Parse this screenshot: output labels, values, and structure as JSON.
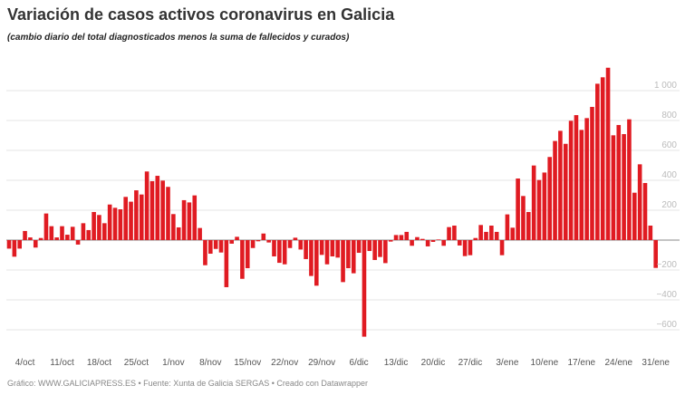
{
  "title": "Variación de casos activos coronavirus en Galicia",
  "subtitle": "(cambio diario del total diagnosticados menos la suma de fallecidos y curados)",
  "footer": "Gráfico: WWW.GALICIAPRESS.ES • Fuente: Xunta de Galicia SERGAS • Creado con Datawrapper",
  "colors": {
    "bar": "#e01b22",
    "grid": "#e6e6e6",
    "zero_line": "#888888"
  },
  "chart_data": {
    "type": "bar",
    "title": "Variación de casos activos coronavirus en Galicia",
    "xlabel": "",
    "ylabel": "",
    "ylim": [
      -650,
      1160
    ],
    "grid": true,
    "x_range": [
      "1/oct",
      "31/ene"
    ],
    "x_tick_labels": [
      "4/oct",
      "11/oct",
      "18/oct",
      "25/oct",
      "1/nov",
      "8/nov",
      "15/nov",
      "22/nov",
      "29/nov",
      "6/dic",
      "13/dic",
      "20/dic",
      "27/dic",
      "3/ene",
      "10/ene",
      "17/ene",
      "24/ene",
      "31/ene"
    ],
    "y_ticks": [
      1000,
      800,
      600,
      400,
      200,
      -200,
      -400,
      -600
    ],
    "y_tick_labels": [
      "1 000",
      "800",
      "600",
      "400",
      "200",
      "−200",
      "−400",
      "−600"
    ],
    "values": [
      -57,
      -111,
      -57,
      61,
      18,
      -50,
      14,
      178,
      93,
      18,
      93,
      36,
      89,
      -30,
      113,
      67,
      188,
      168,
      113,
      238,
      216,
      206,
      289,
      257,
      333,
      305,
      459,
      394,
      430,
      398,
      356,
      174,
      85,
      267,
      252,
      299,
      81,
      -168,
      -91,
      -59,
      -83,
      -315,
      -24,
      22,
      -259,
      -188,
      -53,
      -8,
      44,
      -16,
      -109,
      -152,
      -162,
      -53,
      16,
      -63,
      -127,
      -240,
      -305,
      -99,
      -162,
      -109,
      -117,
      -281,
      -188,
      -222,
      -85,
      -646,
      -73,
      -133,
      -113,
      -154,
      -10,
      34,
      34,
      55,
      -38,
      20,
      8,
      -42,
      -12,
      4,
      -38,
      87,
      97,
      -36,
      -107,
      -101,
      14,
      101,
      55,
      97,
      55,
      -101,
      172,
      83,
      412,
      295,
      188,
      499,
      402,
      452,
      556,
      663,
      731,
      644,
      798,
      836,
      737,
      816,
      891,
      1046,
      1089,
      1153,
      701,
      770,
      709,
      808,
      317,
      507,
      382,
      97,
      -186
    ]
  }
}
